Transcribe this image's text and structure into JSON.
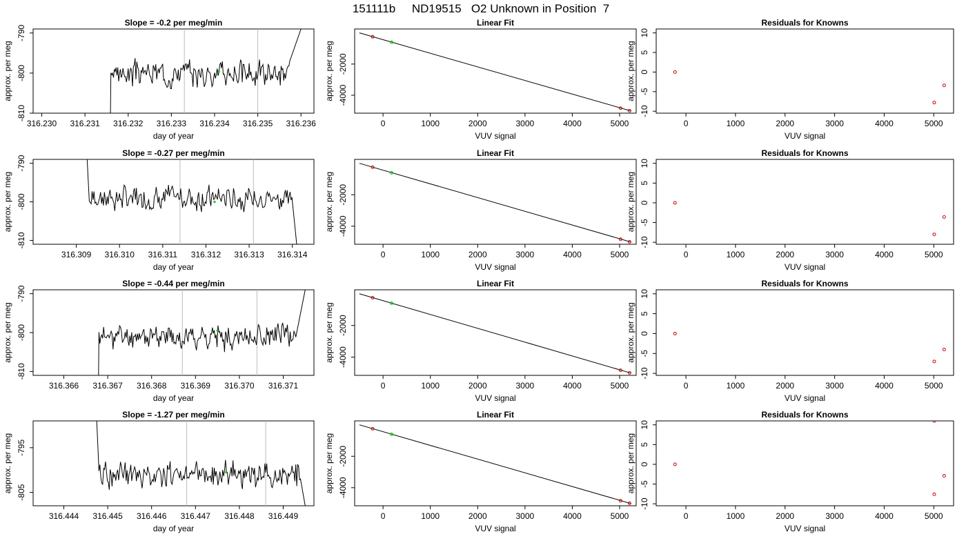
{
  "figure": {
    "title": "151111b     ND19515   O2 Unknown in Position  7"
  },
  "chart_data": [
    {
      "id": "r1-trace",
      "type": "line",
      "title": "Slope =  -0.2  per meg/min",
      "xlabel": "day of year",
      "ylabel": "approx. per meg",
      "xlim": [
        316.2298,
        316.2363
      ],
      "ylim": [
        -810,
        -789
      ],
      "xticks": [
        "316.230",
        "316.231",
        "316.232",
        "316.233",
        "316.234",
        "316.235",
        "316.236"
      ],
      "xtick_values": [
        316.23,
        316.231,
        316.232,
        316.233,
        316.234,
        316.235,
        316.236
      ],
      "yticks": [
        "-810",
        "-800",
        "-790"
      ],
      "ytick_values": [
        -810,
        -800,
        -790
      ],
      "vlines": [
        316.2333,
        316.235
      ],
      "green_point": [
        316.2341,
        -799.5
      ],
      "trace": {
        "start": 316.2316,
        "end": 316.236,
        "center": -800,
        "amp": 3.2,
        "low": -810,
        "ramp_end": 316.2317,
        "tail_start": 316.23575,
        "high": -789,
        "seed": 3
      }
    },
    {
      "id": "r1-fit",
      "type": "scatter",
      "title": "Linear Fit",
      "xlabel": "VUV signal",
      "ylabel": "approx. per meg",
      "xlim": [
        -600,
        5350
      ],
      "ylim": [
        -5150,
        250
      ],
      "xticks": [
        "0",
        "1000",
        "2000",
        "3000",
        "4000",
        "5000"
      ],
      "xtick_values": [
        0,
        1000,
        2000,
        3000,
        4000,
        5000
      ],
      "yticks": [
        "-4000",
        "-2000"
      ],
      "ytick_values": [
        -4000,
        -2000
      ],
      "line": [
        [
          -500,
          0
        ],
        [
          5230,
          -5000
        ]
      ],
      "known_points": [
        [
          -220,
          -250
        ],
        [
          5020,
          -4830
        ],
        [
          5210,
          -4990
        ]
      ],
      "unknown_points": [
        [
          180,
          -600
        ]
      ]
    },
    {
      "id": "r1-resid",
      "type": "scatter",
      "title": "Residuals for Knowns",
      "xlabel": "VUV signal",
      "ylabel": "approx. per meg",
      "xlim": [
        -600,
        5400
      ],
      "ylim": [
        -10.5,
        11
      ],
      "xticks": [
        "0",
        "1000",
        "2000",
        "3000",
        "4000",
        "5000"
      ],
      "xtick_values": [
        0,
        1000,
        2000,
        3000,
        4000,
        5000
      ],
      "yticks": [
        "-10",
        "-5",
        "0",
        "5",
        "10"
      ],
      "ytick_values": [
        -10,
        -5,
        0,
        5,
        10
      ],
      "points": [
        [
          -220,
          0
        ],
        [
          5010,
          -7.8
        ],
        [
          5210,
          -3.4
        ]
      ]
    },
    {
      "id": "r2-trace",
      "type": "line",
      "title": "Slope =  -0.27  per meg/min",
      "xlabel": "day of year",
      "ylabel": "approx. per meg",
      "xlim": [
        316.308,
        316.3145
      ],
      "ylim": [
        -811,
        -789
      ],
      "xticks": [
        "316.309",
        "316.310",
        "316.311",
        "316.312",
        "316.313",
        "316.314"
      ],
      "xtick_values": [
        316.309,
        316.31,
        316.311,
        316.312,
        316.313,
        316.314
      ],
      "yticks": [
        "-810",
        "-800",
        "-790"
      ],
      "ytick_values": [
        -810,
        -800,
        -790
      ],
      "vlines": [
        316.3114,
        316.3131
      ],
      "green_point": [
        316.3122,
        -800
      ],
      "trace": {
        "start": 316.3093,
        "end": 316.3141,
        "center": -799,
        "amp": 3.2,
        "high": -789,
        "ramp_start_end": 316.3096,
        "tail_start": 316.314,
        "low": -811,
        "seed": 7,
        "direction": "down"
      }
    },
    {
      "id": "r2-fit",
      "type": "scatter",
      "title": "Linear Fit",
      "xlabel": "VUV signal",
      "ylabel": "approx. per meg",
      "xlim": [
        -600,
        5350
      ],
      "ylim": [
        -5150,
        250
      ],
      "xticks": [
        "0",
        "1000",
        "2000",
        "3000",
        "4000",
        "5000"
      ],
      "xtick_values": [
        0,
        1000,
        2000,
        3000,
        4000,
        5000
      ],
      "yticks": [
        "-4000",
        "-2000"
      ],
      "ytick_values": [
        -4000,
        -2000
      ],
      "line": [
        [
          -500,
          0
        ],
        [
          5230,
          -5000
        ]
      ],
      "known_points": [
        [
          -220,
          -250
        ],
        [
          5020,
          -4830
        ],
        [
          5210,
          -4990
        ]
      ],
      "unknown_points": [
        [
          180,
          -600
        ]
      ]
    },
    {
      "id": "r2-resid",
      "type": "scatter",
      "title": "Residuals for Knowns",
      "xlabel": "VUV signal",
      "ylabel": "approx. per meg",
      "xlim": [
        -600,
        5400
      ],
      "ylim": [
        -10.5,
        11
      ],
      "xticks": [
        "0",
        "1000",
        "2000",
        "3000",
        "4000",
        "5000"
      ],
      "xtick_values": [
        0,
        1000,
        2000,
        3000,
        4000,
        5000
      ],
      "yticks": [
        "-10",
        "-5",
        "0",
        "5",
        "10"
      ],
      "ytick_values": [
        -10,
        -5,
        0,
        5,
        10
      ],
      "points": [
        [
          -220,
          0
        ],
        [
          5010,
          -8
        ],
        [
          5210,
          -3.6
        ]
      ]
    },
    {
      "id": "r3-trace",
      "type": "line",
      "title": "Slope =  -0.44  per meg/min",
      "xlabel": "day of year",
      "ylabel": "approx. per meg",
      "xlim": [
        316.3653,
        316.3717
      ],
      "ylim": [
        -811,
        -789
      ],
      "xticks": [
        "316.366",
        "316.367",
        "316.368",
        "316.369",
        "316.370",
        "316.371"
      ],
      "xtick_values": [
        316.366,
        316.367,
        316.368,
        316.369,
        316.37,
        316.371
      ],
      "yticks": [
        "-810",
        "-800",
        "-790"
      ],
      "ytick_values": [
        -810,
        -800,
        -790
      ],
      "vlines": [
        316.3687,
        316.3704
      ],
      "green_point": [
        316.3695,
        -799.5
      ],
      "trace": {
        "start": 316.3668,
        "end": 316.3715,
        "center": -801,
        "amp": 3.2,
        "low": -811,
        "ramp_end": 316.3675,
        "tail_start": 316.3713,
        "high": -789,
        "seed": 11
      }
    },
    {
      "id": "r3-fit",
      "type": "scatter",
      "title": "Linear Fit",
      "xlabel": "VUV signal",
      "ylabel": "approx. per meg",
      "xlim": [
        -600,
        5350
      ],
      "ylim": [
        -5150,
        250
      ],
      "xticks": [
        "0",
        "1000",
        "2000",
        "3000",
        "4000",
        "5000"
      ],
      "xtick_values": [
        0,
        1000,
        2000,
        3000,
        4000,
        5000
      ],
      "yticks": [
        "-4000",
        "-2000"
      ],
      "ytick_values": [
        -4000,
        -2000
      ],
      "line": [
        [
          -500,
          0
        ],
        [
          5230,
          -5000
        ]
      ],
      "known_points": [
        [
          -220,
          -250
        ],
        [
          5020,
          -4830
        ],
        [
          5210,
          -4990
        ]
      ],
      "unknown_points": [
        [
          180,
          -600
        ]
      ]
    },
    {
      "id": "r3-resid",
      "type": "scatter",
      "title": "Residuals for Knowns",
      "xlabel": "VUV signal",
      "ylabel": "approx. per meg",
      "xlim": [
        -600,
        5400
      ],
      "ylim": [
        -10.5,
        11
      ],
      "xticks": [
        "0",
        "1000",
        "2000",
        "3000",
        "4000",
        "5000"
      ],
      "xtick_values": [
        0,
        1000,
        2000,
        3000,
        4000,
        5000
      ],
      "yticks": [
        "-10",
        "-5",
        "0",
        "5",
        "10"
      ],
      "ytick_values": [
        -10,
        -5,
        0,
        5,
        10
      ],
      "points": [
        [
          -220,
          0
        ],
        [
          5010,
          -7
        ],
        [
          5210,
          -4
        ]
      ]
    },
    {
      "id": "r4-trace",
      "type": "line",
      "title": "Slope =  -1.27  per meg/min",
      "xlabel": "day of year",
      "ylabel": "approx. per meg",
      "xlim": [
        316.4433,
        316.4497
      ],
      "ylim": [
        -808,
        -789
      ],
      "xticks": [
        "316.444",
        "316.445",
        "316.446",
        "316.447",
        "316.448",
        "316.449"
      ],
      "xtick_values": [
        316.444,
        316.445,
        316.446,
        316.447,
        316.448,
        316.449
      ],
      "yticks": [
        "-805",
        "-795"
      ],
      "ytick_values": [
        -805,
        -795
      ],
      "vlines": [
        316.4468,
        316.4486
      ],
      "green_point": [
        316.4477,
        -800.5
      ],
      "trace": {
        "start": 316.4448,
        "end": 316.4495,
        "center": -801,
        "amp": 3.0,
        "high": -789,
        "ramp_start_end": 316.445,
        "tail_start": 316.4494,
        "low": -808,
        "seed": 19,
        "direction": "down"
      }
    },
    {
      "id": "r4-fit",
      "type": "scatter",
      "title": "Linear Fit",
      "xlabel": "VUV signal",
      "ylabel": "approx. per meg",
      "xlim": [
        -600,
        5350
      ],
      "ylim": [
        -5150,
        250
      ],
      "xticks": [
        "0",
        "1000",
        "2000",
        "3000",
        "4000",
        "5000"
      ],
      "xtick_values": [
        0,
        1000,
        2000,
        3000,
        4000,
        5000
      ],
      "yticks": [
        "-4000",
        "-2000"
      ],
      "ytick_values": [
        -4000,
        -2000
      ],
      "line": [
        [
          -500,
          0
        ],
        [
          5230,
          -5000
        ]
      ],
      "known_points": [
        [
          -220,
          -250
        ],
        [
          5020,
          -4830
        ],
        [
          5210,
          -4990
        ]
      ],
      "unknown_points": [
        [
          180,
          -600
        ]
      ]
    },
    {
      "id": "r4-resid",
      "type": "scatter",
      "title": "Residuals for Knowns",
      "xlabel": "VUV signal",
      "ylabel": "approx. per meg",
      "xlim": [
        -600,
        5400
      ],
      "ylim": [
        -10.5,
        11
      ],
      "xticks": [
        "0",
        "1000",
        "2000",
        "3000",
        "4000",
        "5000"
      ],
      "xtick_values": [
        0,
        1000,
        2000,
        3000,
        4000,
        5000
      ],
      "yticks": [
        "-10",
        "-5",
        "0",
        "5",
        "10"
      ],
      "ytick_values": [
        -10,
        -5,
        0,
        5,
        10
      ],
      "points": [
        [
          -220,
          0
        ],
        [
          5010,
          -7.6
        ],
        [
          5010,
          11
        ],
        [
          5210,
          -2.9
        ]
      ]
    }
  ],
  "colors": {
    "line": "#000000",
    "known_point": "#cc0000",
    "unknown_point": "#00cc00",
    "vline": "#bbbbbb",
    "axis": "#000000"
  }
}
